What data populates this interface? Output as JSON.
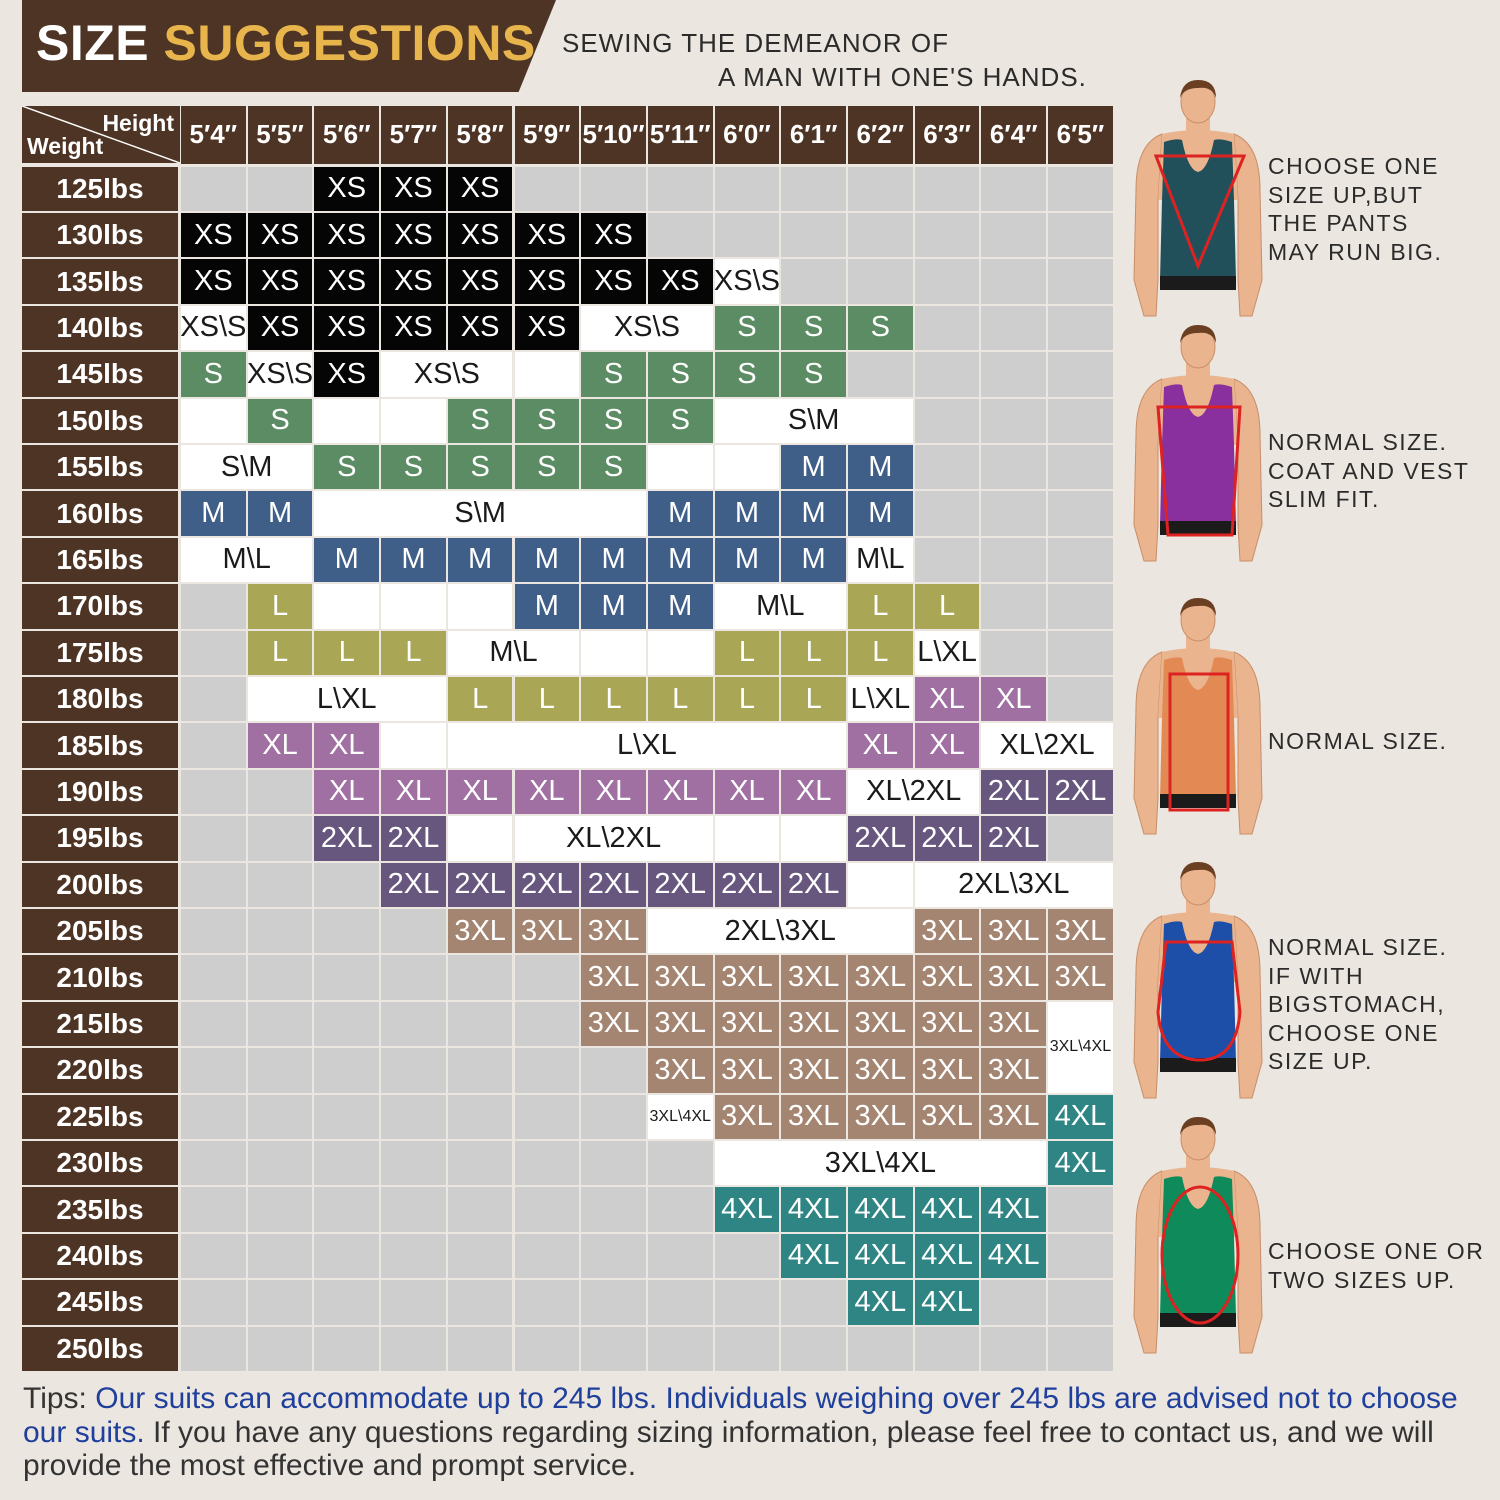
{
  "header": {
    "title_part1": "SIZE",
    "title_part2": "SUGGESTIONS",
    "slogan_line1": "SEWING THE DEMEANOR OF",
    "slogan_line2": "A MAN WITH ONE'S HANDS."
  },
  "table": {
    "corner_height_label": "Height",
    "corner_weight_label": "Weight",
    "heights": [
      "5′4″",
      "5′5″",
      "5′6″",
      "5′7″",
      "5′8″",
      "5′9″",
      "5′10″",
      "5′11″",
      "6′0″",
      "6′1″",
      "6′2″",
      "6′3″",
      "6′4″",
      "6′5″"
    ],
    "weights": [
      "125lbs",
      "130lbs",
      "135lbs",
      "140lbs",
      "145lbs",
      "150lbs",
      "155lbs",
      "160lbs",
      "165lbs",
      "170lbs",
      "175lbs",
      "180lbs",
      "185lbs",
      "190lbs",
      "195lbs",
      "200lbs",
      "205lbs",
      "210lbs",
      "215lbs",
      "220lbs",
      "225lbs",
      "230lbs",
      "235lbs",
      "240lbs",
      "245lbs",
      "250lbs"
    ],
    "cells": [
      [
        0,
        2,
        1,
        "XS"
      ],
      [
        0,
        3,
        1,
        "XS"
      ],
      [
        0,
        4,
        1,
        "XS"
      ],
      [
        1,
        0,
        1,
        "XS"
      ],
      [
        1,
        1,
        1,
        "XS"
      ],
      [
        1,
        2,
        1,
        "XS"
      ],
      [
        1,
        3,
        1,
        "XS"
      ],
      [
        1,
        4,
        1,
        "XS"
      ],
      [
        1,
        5,
        1,
        "XS"
      ],
      [
        1,
        6,
        1,
        "XS"
      ],
      [
        2,
        0,
        1,
        "XS"
      ],
      [
        2,
        1,
        1,
        "XS"
      ],
      [
        2,
        2,
        1,
        "XS"
      ],
      [
        2,
        3,
        1,
        "XS"
      ],
      [
        2,
        4,
        1,
        "XS"
      ],
      [
        2,
        5,
        1,
        "XS"
      ],
      [
        2,
        6,
        1,
        "XS"
      ],
      [
        2,
        7,
        1,
        "XS"
      ],
      [
        2,
        8,
        1,
        "XS\\S"
      ],
      [
        3,
        0,
        1,
        "XS\\S"
      ],
      [
        3,
        1,
        1,
        "XS"
      ],
      [
        3,
        2,
        1,
        "XS"
      ],
      [
        3,
        3,
        1,
        "XS"
      ],
      [
        3,
        4,
        1,
        "XS"
      ],
      [
        3,
        5,
        1,
        "XS"
      ],
      [
        3,
        6,
        2,
        "XS\\S"
      ],
      [
        3,
        8,
        1,
        "S"
      ],
      [
        3,
        9,
        1,
        "S"
      ],
      [
        3,
        10,
        1,
        "S"
      ],
      [
        4,
        0,
        1,
        "S"
      ],
      [
        4,
        1,
        1,
        "XS\\S"
      ],
      [
        4,
        2,
        1,
        "XS"
      ],
      [
        4,
        3,
        2,
        "XS\\S"
      ],
      [
        4,
        5,
        1,
        ""
      ],
      [
        4,
        6,
        1,
        "S"
      ],
      [
        4,
        7,
        1,
        "S"
      ],
      [
        4,
        8,
        1,
        "S"
      ],
      [
        4,
        9,
        1,
        "S"
      ],
      [
        5,
        0,
        1,
        ""
      ],
      [
        5,
        1,
        1,
        "S"
      ],
      [
        5,
        2,
        1,
        ""
      ],
      [
        5,
        3,
        1,
        ""
      ],
      [
        5,
        4,
        1,
        "S"
      ],
      [
        5,
        5,
        1,
        "S"
      ],
      [
        5,
        6,
        1,
        "S"
      ],
      [
        5,
        7,
        1,
        "S"
      ],
      [
        5,
        8,
        3,
        "S\\M"
      ],
      [
        6,
        0,
        2,
        "S\\M"
      ],
      [
        6,
        2,
        1,
        "S"
      ],
      [
        6,
        3,
        1,
        "S"
      ],
      [
        6,
        4,
        1,
        "S"
      ],
      [
        6,
        5,
        1,
        "S"
      ],
      [
        6,
        6,
        1,
        "S"
      ],
      [
        6,
        7,
        1,
        ""
      ],
      [
        6,
        8,
        1,
        ""
      ],
      [
        6,
        9,
        1,
        "M"
      ],
      [
        6,
        10,
        1,
        "M"
      ],
      [
        7,
        0,
        1,
        "M"
      ],
      [
        7,
        1,
        1,
        "M"
      ],
      [
        7,
        2,
        5,
        "S\\M"
      ],
      [
        7,
        7,
        1,
        "M"
      ],
      [
        7,
        8,
        1,
        "M"
      ],
      [
        7,
        9,
        1,
        "M"
      ],
      [
        7,
        10,
        1,
        "M"
      ],
      [
        8,
        0,
        2,
        "M\\L"
      ],
      [
        8,
        2,
        1,
        "M"
      ],
      [
        8,
        3,
        1,
        "M"
      ],
      [
        8,
        4,
        1,
        "M"
      ],
      [
        8,
        5,
        1,
        "M"
      ],
      [
        8,
        6,
        1,
        "M"
      ],
      [
        8,
        7,
        1,
        "M"
      ],
      [
        8,
        8,
        1,
        "M"
      ],
      [
        8,
        9,
        1,
        "M"
      ],
      [
        8,
        10,
        1,
        "M\\L"
      ],
      [
        9,
        1,
        1,
        "L"
      ],
      [
        9,
        2,
        1,
        ""
      ],
      [
        9,
        3,
        1,
        ""
      ],
      [
        9,
        4,
        1,
        ""
      ],
      [
        9,
        5,
        1,
        "M"
      ],
      [
        9,
        6,
        1,
        "M"
      ],
      [
        9,
        7,
        1,
        "M"
      ],
      [
        9,
        8,
        2,
        "M\\L"
      ],
      [
        9,
        10,
        1,
        "L"
      ],
      [
        9,
        11,
        1,
        "L"
      ],
      [
        10,
        1,
        1,
        "L"
      ],
      [
        10,
        2,
        1,
        "L"
      ],
      [
        10,
        3,
        1,
        "L"
      ],
      [
        10,
        4,
        2,
        "M\\L"
      ],
      [
        10,
        6,
        1,
        ""
      ],
      [
        10,
        7,
        1,
        ""
      ],
      [
        10,
        8,
        1,
        "L"
      ],
      [
        10,
        9,
        1,
        "L"
      ],
      [
        10,
        10,
        1,
        "L"
      ],
      [
        10,
        11,
        1,
        "L\\XL"
      ],
      [
        11,
        1,
        3,
        "L\\XL"
      ],
      [
        11,
        4,
        1,
        "L"
      ],
      [
        11,
        5,
        1,
        "L"
      ],
      [
        11,
        6,
        1,
        "L"
      ],
      [
        11,
        7,
        1,
        "L"
      ],
      [
        11,
        8,
        1,
        "L"
      ],
      [
        11,
        9,
        1,
        "L"
      ],
      [
        11,
        10,
        1,
        "L\\XL"
      ],
      [
        11,
        11,
        1,
        "XL"
      ],
      [
        11,
        12,
        1,
        "XL"
      ],
      [
        12,
        1,
        1,
        "XL"
      ],
      [
        12,
        2,
        1,
        "XL"
      ],
      [
        12,
        3,
        1,
        ""
      ],
      [
        12,
        4,
        6,
        "L\\XL"
      ],
      [
        12,
        10,
        1,
        "XL"
      ],
      [
        12,
        11,
        1,
        "XL"
      ],
      [
        12,
        12,
        2,
        "XL\\2XL"
      ],
      [
        13,
        2,
        1,
        "XL"
      ],
      [
        13,
        3,
        1,
        "XL"
      ],
      [
        13,
        4,
        1,
        "XL"
      ],
      [
        13,
        5,
        1,
        "XL"
      ],
      [
        13,
        6,
        1,
        "XL"
      ],
      [
        13,
        7,
        1,
        "XL"
      ],
      [
        13,
        8,
        1,
        "XL"
      ],
      [
        13,
        9,
        1,
        "XL"
      ],
      [
        13,
        10,
        2,
        "XL\\2XL"
      ],
      [
        13,
        12,
        1,
        "2XL"
      ],
      [
        13,
        13,
        1,
        "2XL"
      ],
      [
        14,
        2,
        1,
        "2XL"
      ],
      [
        14,
        3,
        1,
        "2XL"
      ],
      [
        14,
        4,
        1,
        ""
      ],
      [
        14,
        5,
        3,
        "XL\\2XL"
      ],
      [
        14,
        8,
        1,
        ""
      ],
      [
        14,
        9,
        1,
        ""
      ],
      [
        14,
        10,
        1,
        "2XL"
      ],
      [
        14,
        11,
        1,
        "2XL"
      ],
      [
        14,
        12,
        1,
        "2XL"
      ],
      [
        15,
        3,
        1,
        "2XL"
      ],
      [
        15,
        4,
        1,
        "2XL"
      ],
      [
        15,
        5,
        1,
        "2XL"
      ],
      [
        15,
        6,
        1,
        "2XL"
      ],
      [
        15,
        7,
        1,
        "2XL"
      ],
      [
        15,
        8,
        1,
        "2XL"
      ],
      [
        15,
        9,
        1,
        "2XL"
      ],
      [
        15,
        10,
        1,
        ""
      ],
      [
        15,
        11,
        3,
        "2XL\\3XL"
      ],
      [
        16,
        4,
        1,
        "3XL"
      ],
      [
        16,
        5,
        1,
        "3XL"
      ],
      [
        16,
        6,
        1,
        "3XL"
      ],
      [
        16,
        7,
        4,
        "2XL\\3XL"
      ],
      [
        16,
        11,
        1,
        "3XL"
      ],
      [
        16,
        12,
        1,
        "3XL"
      ],
      [
        16,
        13,
        1,
        "3XL"
      ],
      [
        17,
        6,
        1,
        "3XL"
      ],
      [
        17,
        7,
        1,
        "3XL"
      ],
      [
        17,
        8,
        1,
        "3XL"
      ],
      [
        17,
        9,
        1,
        "3XL"
      ],
      [
        17,
        10,
        1,
        "3XL"
      ],
      [
        17,
        11,
        1,
        "3XL"
      ],
      [
        17,
        12,
        1,
        "3XL"
      ],
      [
        17,
        13,
        1,
        "3XL"
      ],
      [
        18,
        6,
        1,
        "3XL"
      ],
      [
        18,
        7,
        1,
        "3XL"
      ],
      [
        18,
        8,
        1,
        "3XL"
      ],
      [
        18,
        9,
        1,
        "3XL"
      ],
      [
        18,
        10,
        1,
        "3XL"
      ],
      [
        18,
        11,
        1,
        "3XL"
      ],
      [
        18,
        12,
        1,
        "3XL"
      ],
      [
        19,
        7,
        1,
        "3XL"
      ],
      [
        19,
        8,
        1,
        "3XL"
      ],
      [
        19,
        9,
        1,
        "3XL"
      ],
      [
        19,
        10,
        1,
        "3XL"
      ],
      [
        19,
        11,
        1,
        "3XL"
      ],
      [
        19,
        12,
        1,
        "3XL"
      ],
      [
        20,
        7,
        1,
        "3XL\\4XL"
      ],
      [
        20,
        8,
        1,
        "3XL"
      ],
      [
        20,
        9,
        1,
        "3XL"
      ],
      [
        20,
        10,
        1,
        "3XL"
      ],
      [
        20,
        11,
        1,
        "3XL"
      ],
      [
        20,
        12,
        1,
        "3XL"
      ],
      [
        20,
        13,
        1,
        "4XL"
      ],
      [
        21,
        8,
        5,
        "3XL\\4XL"
      ],
      [
        21,
        13,
        1,
        "4XL"
      ],
      [
        22,
        8,
        1,
        "4XL"
      ],
      [
        22,
        9,
        1,
        "4XL"
      ],
      [
        22,
        10,
        1,
        "4XL"
      ],
      [
        22,
        11,
        1,
        "4XL"
      ],
      [
        22,
        12,
        1,
        "4XL"
      ],
      [
        23,
        9,
        1,
        "4XL"
      ],
      [
        23,
        10,
        1,
        "4XL"
      ],
      [
        23,
        11,
        1,
        "4XL"
      ],
      [
        23,
        12,
        1,
        "4XL"
      ],
      [
        24,
        10,
        1,
        "4XL"
      ],
      [
        24,
        11,
        1,
        "4XL"
      ]
    ],
    "tall_cell": {
      "row": 18,
      "col": 13,
      "rowspan": 2,
      "text": "3XL\\4XL"
    }
  },
  "colors": {
    "header_brown": "#4e3424",
    "title_gold": "#e8b54c",
    "empty_grey": "#cecece",
    "xs": "#050505",
    "s": "#5b8c63",
    "m": "#3f5f88",
    "l": "#a9a655",
    "xl": "#a070a2",
    "2xl": "#67577f",
    "3xl": "#a48571",
    "4xl": "#2e8583",
    "mixed": "#ffffff",
    "tips_highlight": "#1f3f9c"
  },
  "figures": [
    {
      "shirt_color": "#22505a",
      "shape": "inverted-triangle",
      "note": [
        "CHOOSE ONE",
        "SIZE UP,BUT",
        "THE PANTS",
        "MAY RUN BIG."
      ]
    },
    {
      "shirt_color": "#8a2f9e",
      "shape": "trapezoid",
      "note": [
        "NORMAL SIZE.",
        "COAT AND VEST",
        "SLIM FIT."
      ]
    },
    {
      "shirt_color": "#e38a54",
      "shape": "rectangle",
      "note": [
        "NORMAL SIZE."
      ]
    },
    {
      "shirt_color": "#1d4fa8",
      "shape": "round-belly",
      "note": [
        "NORMAL SIZE.",
        "IF WITH",
        "BIGSTOMACH,",
        "CHOOSE ONE",
        "SIZE UP."
      ]
    },
    {
      "shirt_color": "#0f8a5a",
      "shape": "oval",
      "note": [
        "CHOOSE ONE OR",
        "TWO SIZES UP."
      ]
    }
  ],
  "tips": {
    "label": "Tips: ",
    "highlight": "Our suits can accommodate up to 245 lbs. Individuals weighing over 245 lbs are advised not to choose our suits.",
    "rest": " If you have any questions regarding sizing information, please feel free to contact us, and we will provide the most effective and prompt service."
  }
}
